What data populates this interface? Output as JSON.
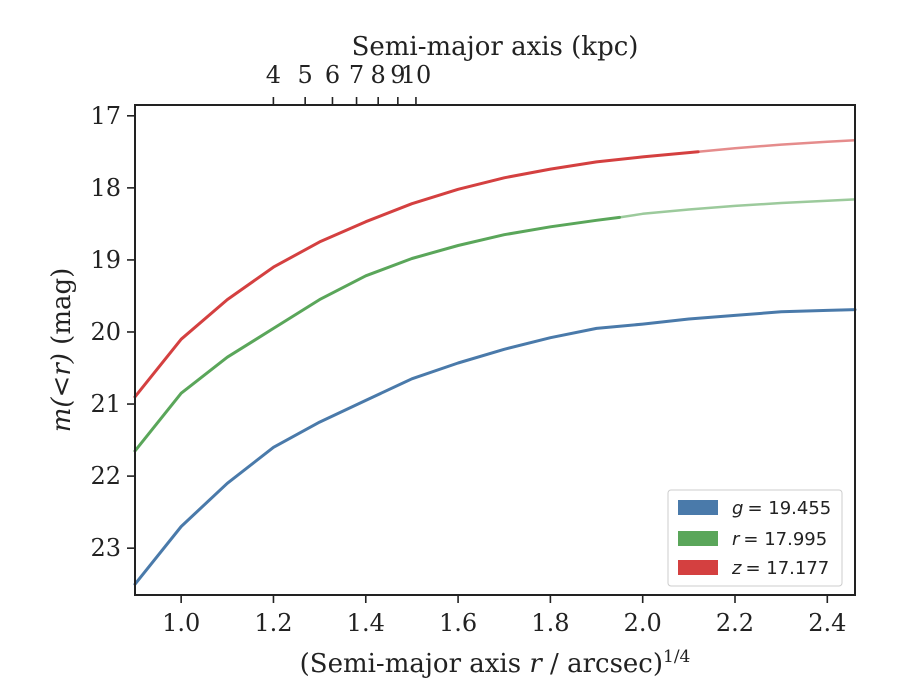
{
  "chart_data": {
    "type": "line",
    "xlabel": "(Semi-major axis r / arcsec)^1/4",
    "xlabel_parts": {
      "pre": "(Semi-major axis ",
      "var": "r",
      "mid": " / arcsec)",
      "sup": "1/4"
    },
    "top_xlabel": "Semi-major axis (kpc)",
    "ylabel": "m(<r) (mag)",
    "ylabel_parts": {
      "var": "m(<r)",
      "unit": " (mag)"
    },
    "xlim": [
      0.9,
      2.46
    ],
    "ylim": [
      23.65,
      16.85
    ],
    "y_inverted": true,
    "x_ticks": [
      "1.0",
      "1.2",
      "1.4",
      "1.6",
      "1.8",
      "2.0",
      "2.2",
      "2.4"
    ],
    "y_ticks": [
      "17",
      "18",
      "19",
      "20",
      "21",
      "22",
      "23"
    ],
    "top_ticks": [
      "4",
      "5",
      "6",
      "7",
      "8",
      "9",
      "10"
    ],
    "legend_position": "lower-right",
    "series": [
      {
        "name": "g = 19.455",
        "legend_var": "g",
        "legend_value": "= 19.455",
        "color": "#4a7aaa",
        "solid_until": 2.46,
        "x": [
          0.9,
          1.0,
          1.1,
          1.2,
          1.3,
          1.4,
          1.5,
          1.6,
          1.7,
          1.8,
          1.9,
          2.0,
          2.1,
          2.2,
          2.3,
          2.4,
          2.46
        ],
        "y": [
          23.5,
          22.7,
          22.1,
          21.6,
          21.25,
          20.95,
          20.65,
          20.43,
          20.24,
          20.08,
          19.95,
          19.89,
          19.82,
          19.77,
          19.72,
          19.7,
          19.69
        ]
      },
      {
        "name": "r = 17.995",
        "legend_var": "r",
        "legend_value": "= 17.995",
        "color": "#5aa65a",
        "solid_until": 1.95,
        "x": [
          0.9,
          1.0,
          1.1,
          1.2,
          1.3,
          1.4,
          1.5,
          1.6,
          1.7,
          1.8,
          1.9,
          1.95,
          2.0,
          2.1,
          2.2,
          2.3,
          2.4,
          2.46
        ],
        "y": [
          21.65,
          20.85,
          20.35,
          19.95,
          19.55,
          19.22,
          18.98,
          18.8,
          18.65,
          18.54,
          18.45,
          18.41,
          18.36,
          18.3,
          18.25,
          18.21,
          18.18,
          18.16
        ]
      },
      {
        "name": "z = 17.177",
        "legend_var": "z",
        "legend_value": "= 17.177",
        "color": "#d44040",
        "solid_until": 2.12,
        "x": [
          0.9,
          1.0,
          1.1,
          1.2,
          1.3,
          1.4,
          1.5,
          1.6,
          1.7,
          1.8,
          1.9,
          2.0,
          2.12,
          2.2,
          2.3,
          2.4,
          2.46
        ],
        "y": [
          20.9,
          20.1,
          19.55,
          19.1,
          18.75,
          18.47,
          18.22,
          18.02,
          17.86,
          17.74,
          17.64,
          17.57,
          17.5,
          17.45,
          17.4,
          17.36,
          17.34
        ]
      }
    ]
  }
}
